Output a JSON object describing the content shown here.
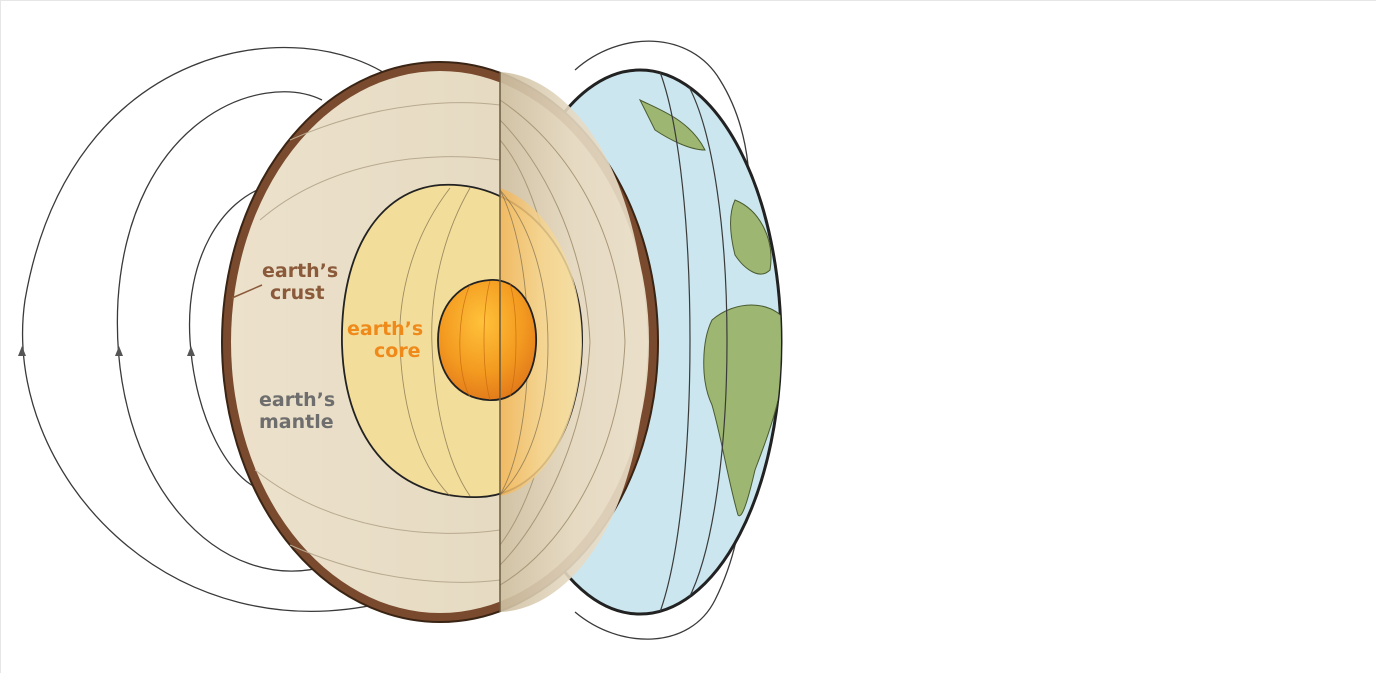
{
  "labels": {
    "crust": [
      "earth’s",
      "crust"
    ],
    "core": [
      "earth’s",
      "core"
    ],
    "mantle": [
      "earth’s",
      "mantle"
    ]
  },
  "colors": {
    "crust": "#7a4a2e",
    "crust_text": "#8a5a3a",
    "mantle": "#e8dcc6",
    "outer_core": "#f3dd9a",
    "inner_core": "#f29a22",
    "core_text": "#ef8a1a",
    "mantle_text": "#6e6e6e",
    "ocean": "#cbe6ee",
    "land": "#9db672",
    "field_line": "#3a3a3a"
  }
}
